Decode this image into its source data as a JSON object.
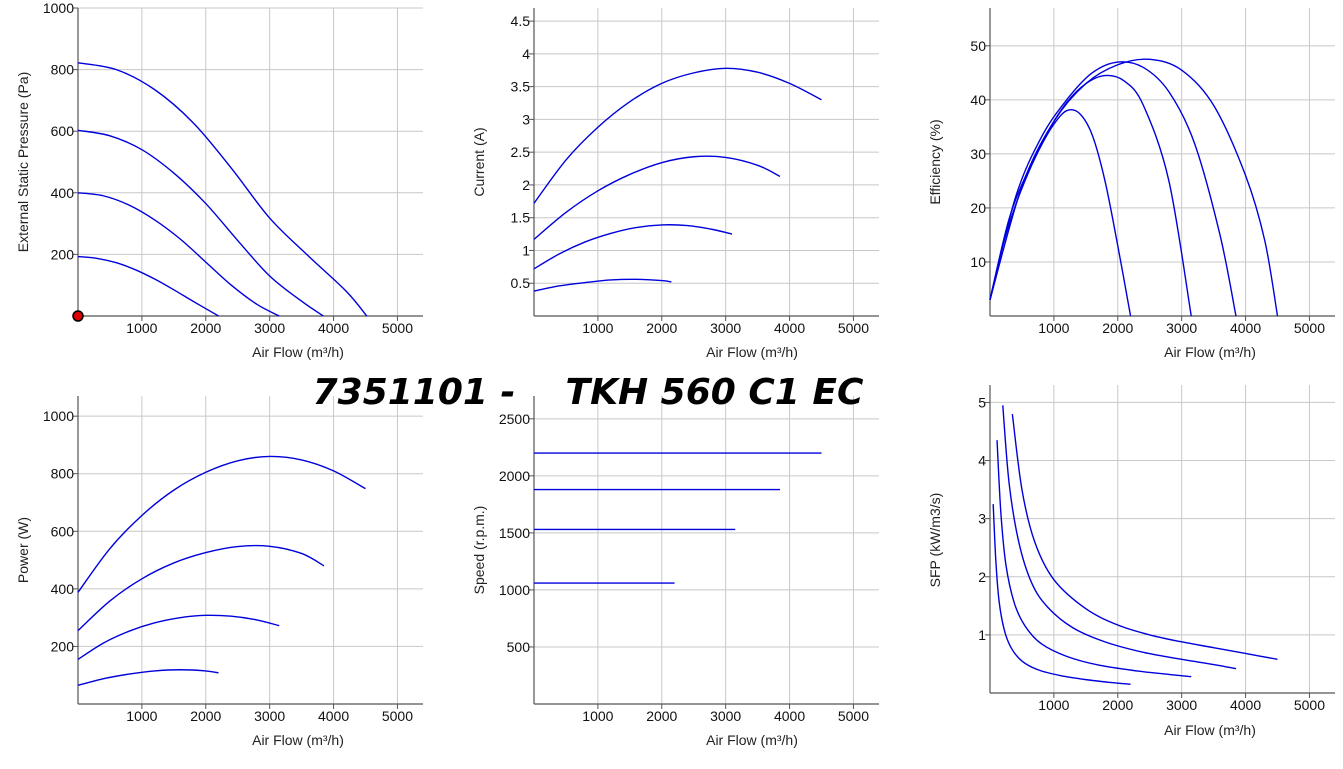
{
  "title": "7351101 -    TKH 560 C1 EC",
  "colors": {
    "curve": "#0000dd",
    "grid": "#c8c8c8",
    "axis": "#555555",
    "marker_fill": "#dd0000"
  },
  "chart_data": [
    {
      "id": "pressure",
      "type": "line",
      "xlabel": "Air Flow (m³/h)",
      "ylabel": "External Static Pressure (Pa)",
      "xlim": [
        0,
        5400
      ],
      "ylim": [
        0,
        1000
      ],
      "xticks": [
        1000,
        2000,
        3000,
        4000,
        5000
      ],
      "yticks": [
        200,
        400,
        600,
        800,
        1000
      ],
      "ytick_labels_extra": [],
      "marker": [
        0,
        0
      ],
      "series": [
        {
          "x": [
            0,
            600,
            1200,
            1800,
            2400,
            3000,
            3600,
            4200,
            4520
          ],
          "y": [
            822,
            800,
            735,
            628,
            480,
            318,
            196,
            80,
            0
          ]
        },
        {
          "x": [
            0,
            500,
            1000,
            1500,
            2000,
            2500,
            3000,
            3500,
            3840
          ],
          "y": [
            603,
            585,
            540,
            464,
            365,
            245,
            130,
            48,
            0
          ]
        },
        {
          "x": [
            0,
            400,
            800,
            1200,
            1600,
            2000,
            2400,
            2800,
            3150
          ],
          "y": [
            400,
            390,
            360,
            312,
            250,
            175,
            100,
            38,
            0
          ]
        },
        {
          "x": [
            0,
            300,
            600,
            900,
            1200,
            1500,
            1800,
            2100,
            2200
          ],
          "y": [
            193,
            187,
            173,
            150,
            120,
            85,
            48,
            12,
            0
          ]
        }
      ]
    },
    {
      "id": "current",
      "type": "line",
      "xlabel": "Air Flow (m³/h)",
      "ylabel": "Current (A)",
      "xlim": [
        0,
        5400
      ],
      "ylim": [
        0,
        4.7
      ],
      "xticks": [
        1000,
        2000,
        3000,
        4000,
        5000
      ],
      "yticks": [
        0.5,
        1,
        1.5,
        2,
        2.5,
        3,
        3.5,
        4,
        4.5
      ],
      "series": [
        {
          "x": [
            0,
            500,
            1000,
            1500,
            2000,
            2500,
            3000,
            3500,
            4000,
            4500
          ],
          "y": [
            1.72,
            2.38,
            2.88,
            3.27,
            3.55,
            3.71,
            3.78,
            3.72,
            3.55,
            3.3
          ]
        },
        {
          "x": [
            0,
            500,
            1000,
            1500,
            2000,
            2500,
            3000,
            3500,
            3850
          ],
          "y": [
            1.17,
            1.58,
            1.91,
            2.16,
            2.34,
            2.43,
            2.42,
            2.3,
            2.13
          ]
        },
        {
          "x": [
            0,
            400,
            800,
            1200,
            1600,
            2000,
            2400,
            2800,
            3100
          ],
          "y": [
            0.72,
            0.95,
            1.13,
            1.26,
            1.35,
            1.39,
            1.38,
            1.32,
            1.25
          ]
        },
        {
          "x": [
            0,
            400,
            800,
            1200,
            1600,
            2000,
            2150
          ],
          "y": [
            0.38,
            0.46,
            0.51,
            0.55,
            0.56,
            0.54,
            0.52
          ]
        }
      ]
    },
    {
      "id": "efficiency",
      "type": "line",
      "xlabel": "Air Flow (m³/h)",
      "ylabel": "Efficiency (%)",
      "xlim": [
        0,
        5400
      ],
      "ylim": [
        0,
        57
      ],
      "xticks": [
        1000,
        2000,
        3000,
        4000,
        5000
      ],
      "yticks": [
        10,
        20,
        30,
        40,
        50
      ],
      "series": [
        {
          "x": [
            0,
            500,
            1000,
            1500,
            2000,
            2500,
            3000,
            3500,
            4000,
            4300,
            4500
          ],
          "y": [
            3,
            24,
            36,
            43,
            46.5,
            47.5,
            45.5,
            39,
            26,
            14,
            0
          ]
        },
        {
          "x": [
            0,
            400,
            800,
            1200,
            1600,
            2000,
            2400,
            2800,
            3200,
            3600,
            3850
          ],
          "y": [
            3,
            22,
            33,
            40,
            45,
            47,
            46,
            41.5,
            32,
            15,
            0
          ]
        },
        {
          "x": [
            0,
            300,
            600,
            900,
            1200,
            1500,
            1800,
            2100,
            2400,
            2800,
            3150
          ],
          "y": [
            3,
            18,
            27,
            34,
            39.5,
            43,
            44.5,
            43.5,
            39,
            25,
            0
          ]
        },
        {
          "x": [
            0,
            200,
            400,
            600,
            800,
            1000,
            1200,
            1400,
            1600,
            1800,
            2000,
            2200
          ],
          "y": [
            3,
            13,
            20.5,
            26.5,
            31.5,
            35.5,
            38,
            37.5,
            33.5,
            25,
            13,
            0
          ]
        }
      ]
    },
    {
      "id": "power",
      "type": "line",
      "xlabel": "Air Flow (m³/h)",
      "ylabel": "Power (W)",
      "xlim": [
        0,
        5400
      ],
      "ylim": [
        0,
        1070
      ],
      "xticks": [
        1000,
        2000,
        3000,
        4000,
        5000
      ],
      "yticks": [
        200,
        400,
        600,
        800,
        1000
      ],
      "series": [
        {
          "x": [
            0,
            500,
            1000,
            1500,
            2000,
            2500,
            3000,
            3500,
            4000,
            4500
          ],
          "y": [
            388,
            540,
            655,
            743,
            805,
            845,
            860,
            848,
            810,
            748
          ]
        },
        {
          "x": [
            0,
            500,
            1000,
            1500,
            2000,
            2500,
            3000,
            3500,
            3850
          ],
          "y": [
            255,
            358,
            435,
            490,
            526,
            547,
            548,
            523,
            480
          ]
        },
        {
          "x": [
            0,
            400,
            800,
            1200,
            1600,
            2000,
            2400,
            2800,
            3150
          ],
          "y": [
            155,
            212,
            253,
            282,
            300,
            308,
            305,
            292,
            272
          ]
        },
        {
          "x": [
            0,
            400,
            800,
            1200,
            1600,
            2000,
            2200
          ],
          "y": [
            65,
            88,
            104,
            115,
            119,
            115,
            108
          ]
        }
      ]
    },
    {
      "id": "speed",
      "type": "line",
      "xlabel": "Air Flow (m³/h)",
      "ylabel": "Speed (r.p.m.)",
      "xlim": [
        0,
        5400
      ],
      "ylim": [
        0,
        2700
      ],
      "xticks": [
        1000,
        2000,
        3000,
        4000,
        5000
      ],
      "yticks": [
        500,
        1000,
        1500,
        2000,
        2500
      ],
      "series": [
        {
          "x": [
            0,
            4500
          ],
          "y": [
            2200,
            2200
          ]
        },
        {
          "x": [
            0,
            3850
          ],
          "y": [
            1880,
            1880
          ]
        },
        {
          "x": [
            0,
            3150
          ],
          "y": [
            1530,
            1530
          ]
        },
        {
          "x": [
            0,
            2200
          ],
          "y": [
            1060,
            1060
          ]
        }
      ]
    },
    {
      "id": "sfp",
      "type": "line",
      "xlabel": "Air Flow (m³/h)",
      "ylabel": "SFP (kW/m3/s)",
      "xlim": [
        0,
        5400
      ],
      "ylim": [
        0,
        5.3
      ],
      "xticks": [
        1000,
        2000,
        3000,
        4000,
        5000
      ],
      "yticks": [
        1,
        2,
        3,
        4,
        5
      ],
      "series": [
        {
          "x": [
            350,
            500,
            700,
            1000,
            1500,
            2000,
            2500,
            3000,
            3500,
            4000,
            4500
          ],
          "y": [
            4.8,
            3.5,
            2.6,
            1.95,
            1.45,
            1.17,
            1.0,
            0.88,
            0.78,
            0.68,
            0.58
          ]
        },
        {
          "x": [
            200,
            300,
            450,
            650,
            900,
            1300,
            1800,
            2400,
            3000,
            3500,
            3850
          ],
          "y": [
            4.95,
            3.6,
            2.6,
            1.9,
            1.48,
            1.12,
            0.88,
            0.7,
            0.58,
            0.49,
            0.42
          ]
        },
        {
          "x": [
            110,
            170,
            250,
            380,
            550,
            800,
            1200,
            1700,
            2300,
            2800,
            3150
          ],
          "y": [
            4.35,
            3.1,
            2.2,
            1.55,
            1.15,
            0.85,
            0.63,
            0.48,
            0.38,
            0.32,
            0.28
          ]
        },
        {
          "x": [
            50,
            90,
            140,
            220,
            330,
            500,
            750,
            1100,
            1500,
            1900,
            2200
          ],
          "y": [
            3.25,
            2.3,
            1.6,
            1.1,
            0.78,
            0.55,
            0.4,
            0.3,
            0.23,
            0.18,
            0.15
          ]
        }
      ]
    }
  ]
}
